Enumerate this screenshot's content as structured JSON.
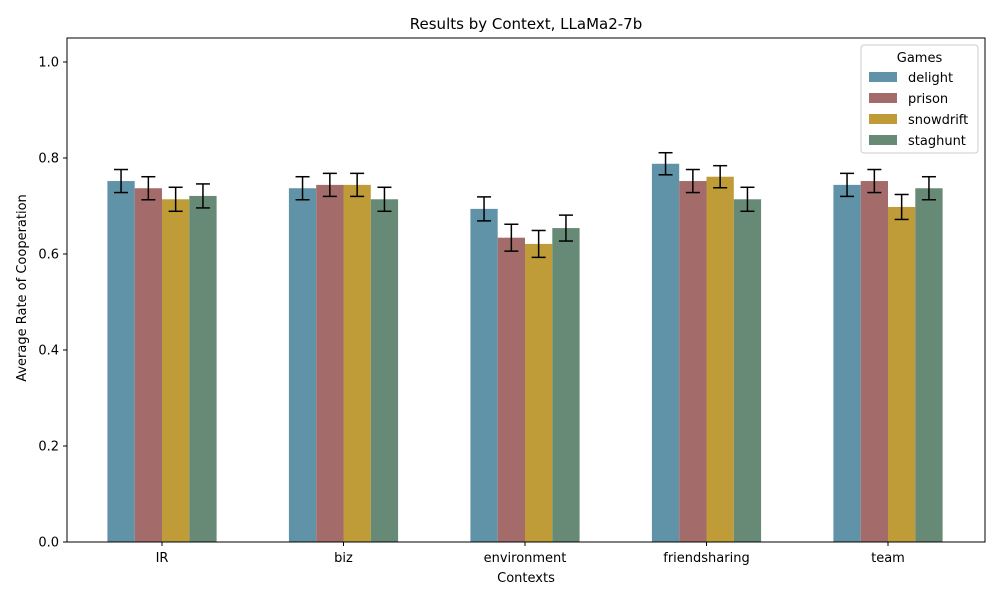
{
  "chart_data": {
    "type": "bar",
    "title": "Results by Context, LLaMa2-7b",
    "xlabel": "Contexts",
    "ylabel": "Average Rate of Cooperation",
    "ylim": [
      0,
      1.05
    ],
    "yticks": [
      "0.0",
      "0.2",
      "0.4",
      "0.6",
      "0.8",
      "1.0"
    ],
    "categories": [
      "IR",
      "biz",
      "environment",
      "friendsharing",
      "team"
    ],
    "legend": {
      "title": "Games",
      "position": "top-right"
    },
    "series": [
      {
        "name": "delight",
        "color": "#6093a8",
        "values": [
          0.752,
          0.737,
          0.694,
          0.788,
          0.744
        ],
        "err": [
          0.024,
          0.024,
          0.025,
          0.023,
          0.024
        ]
      },
      {
        "name": "prison",
        "color": "#a46b6b",
        "values": [
          0.737,
          0.744,
          0.634,
          0.752,
          0.752
        ],
        "err": [
          0.024,
          0.024,
          0.028,
          0.024,
          0.024
        ]
      },
      {
        "name": "snowdrift",
        "color": "#bf9c38",
        "values": [
          0.714,
          0.744,
          0.621,
          0.761,
          0.698
        ],
        "err": [
          0.025,
          0.024,
          0.028,
          0.023,
          0.026
        ]
      },
      {
        "name": "staghunt",
        "color": "#678a76",
        "values": [
          0.721,
          0.714,
          0.654,
          0.714,
          0.737
        ],
        "err": [
          0.025,
          0.025,
          0.027,
          0.025,
          0.024
        ]
      }
    ]
  }
}
